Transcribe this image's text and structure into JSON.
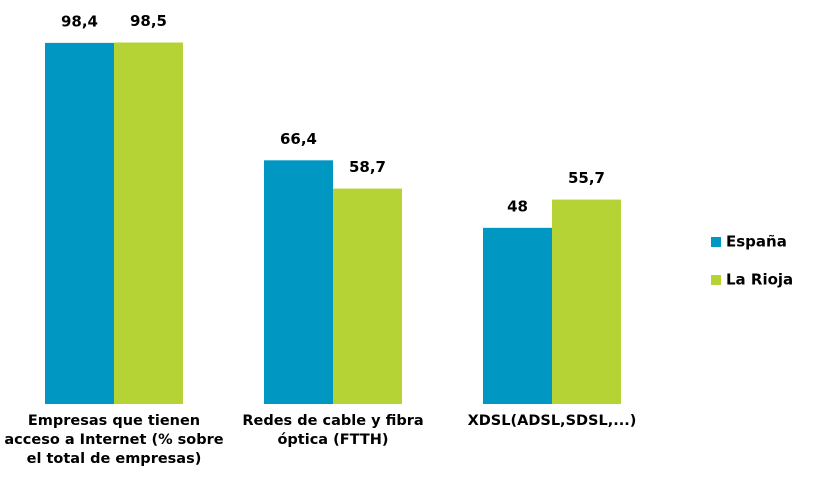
{
  "chart_data": {
    "type": "bar",
    "categories": [
      "Empresas que tienen acceso a Internet (% sobre el total de empresas)",
      "Redes de cable y fibra óptica (FTTH)",
      "XDSL(ADSL,SDSL,...)"
    ],
    "series": [
      {
        "name": "España",
        "color": "#0098c3",
        "values": [
          98.4,
          66.4,
          48
        ],
        "value_labels": [
          "98,4",
          "66,4",
          "48"
        ]
      },
      {
        "name": "La Rioja",
        "color": "#b5d334",
        "values": [
          98.5,
          58.7,
          55.7
        ],
        "value_labels": [
          "98,5",
          "58,7",
          "55,7"
        ]
      }
    ],
    "ylim": [
      0,
      100
    ],
    "legend": "right"
  }
}
